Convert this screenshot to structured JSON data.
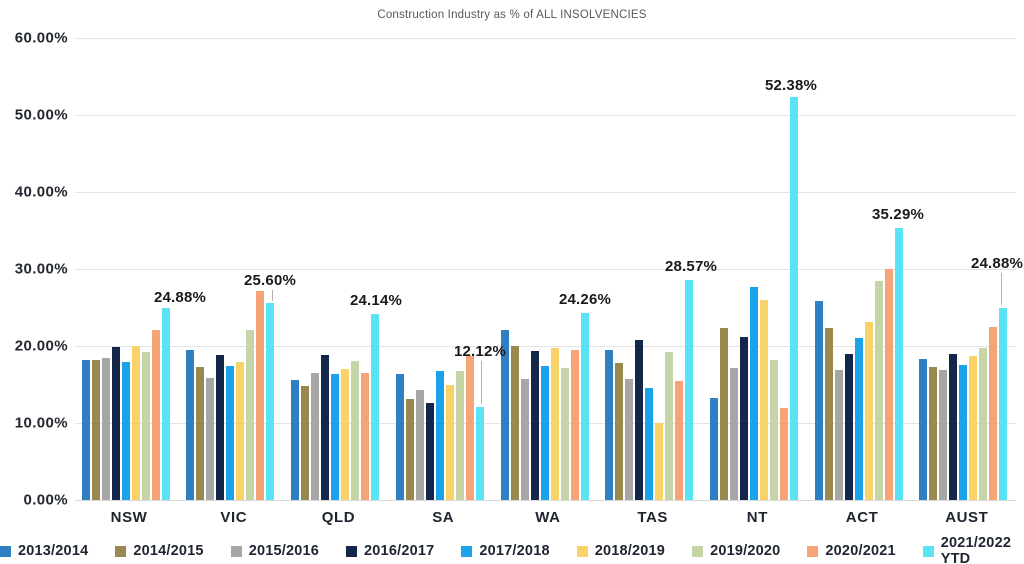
{
  "title": "Construction Industry as % of ALL INSOLVENCIES",
  "chart_data": {
    "type": "bar",
    "title": "Construction Industry as % of ALL INSOLVENCIES",
    "categories": [
      "NSW",
      "VIC",
      "QLD",
      "SA",
      "WA",
      "TAS",
      "NT",
      "ACT",
      "AUST"
    ],
    "series": [
      {
        "name": "2013/2014",
        "color": "#2e80c3",
        "values": [
          18.2,
          19.5,
          15.6,
          16.3,
          22.1,
          19.5,
          13.2,
          25.9,
          18.3
        ]
      },
      {
        "name": "2014/2015",
        "color": "#998951",
        "values": [
          18.2,
          17.3,
          14.8,
          13.1,
          20.0,
          17.8,
          22.3,
          22.4,
          17.3
        ]
      },
      {
        "name": "2015/2016",
        "color": "#a6a6a6",
        "values": [
          18.5,
          15.9,
          16.5,
          14.3,
          15.7,
          15.7,
          17.1,
          16.9,
          16.9
        ]
      },
      {
        "name": "2016/2017",
        "color": "#14274a",
        "values": [
          19.9,
          18.8,
          18.8,
          12.6,
          19.3,
          20.8,
          21.2,
          19.0,
          18.9
        ]
      },
      {
        "name": "2017/2018",
        "color": "#1ba2ea",
        "values": [
          17.9,
          17.4,
          16.3,
          16.7,
          17.4,
          14.6,
          27.7,
          21.1,
          17.5
        ]
      },
      {
        "name": "2018/2019",
        "color": "#f9d368",
        "values": [
          20.0,
          17.9,
          17.0,
          15.0,
          19.8,
          10.0,
          26.0,
          23.1,
          18.7
        ]
      },
      {
        "name": "2019/2020",
        "color": "#c6d5a8",
        "values": [
          19.2,
          22.1,
          18.0,
          16.8,
          17.1,
          19.2,
          18.2,
          28.5,
          19.8
        ]
      },
      {
        "name": "2020/2021",
        "color": "#f5a377",
        "values": [
          22.1,
          27.2,
          16.5,
          18.7,
          19.5,
          15.4,
          11.9,
          30.0,
          22.5
        ]
      },
      {
        "name": "2021/2022 YTD",
        "color": "#58e4f2",
        "values": [
          24.88,
          25.6,
          24.14,
          12.12,
          24.26,
          28.57,
          52.38,
          35.29,
          24.88
        ]
      }
    ],
    "data_labels_series": "2021/2022 YTD",
    "data_labels": [
      "24.88%",
      "25.60%",
      "24.14%",
      "12.12%",
      "24.26%",
      "28.57%",
      "52.38%",
      "35.29%",
      "24.88%"
    ],
    "ytick_labels": [
      "0.00%",
      "10.00%",
      "20.00%",
      "30.00%",
      "40.00%",
      "50.00%",
      "60.00%"
    ],
    "ylim": [
      0,
      60
    ],
    "xlabel": "",
    "ylabel": "",
    "grid": true,
    "legend_position": "bottom"
  }
}
